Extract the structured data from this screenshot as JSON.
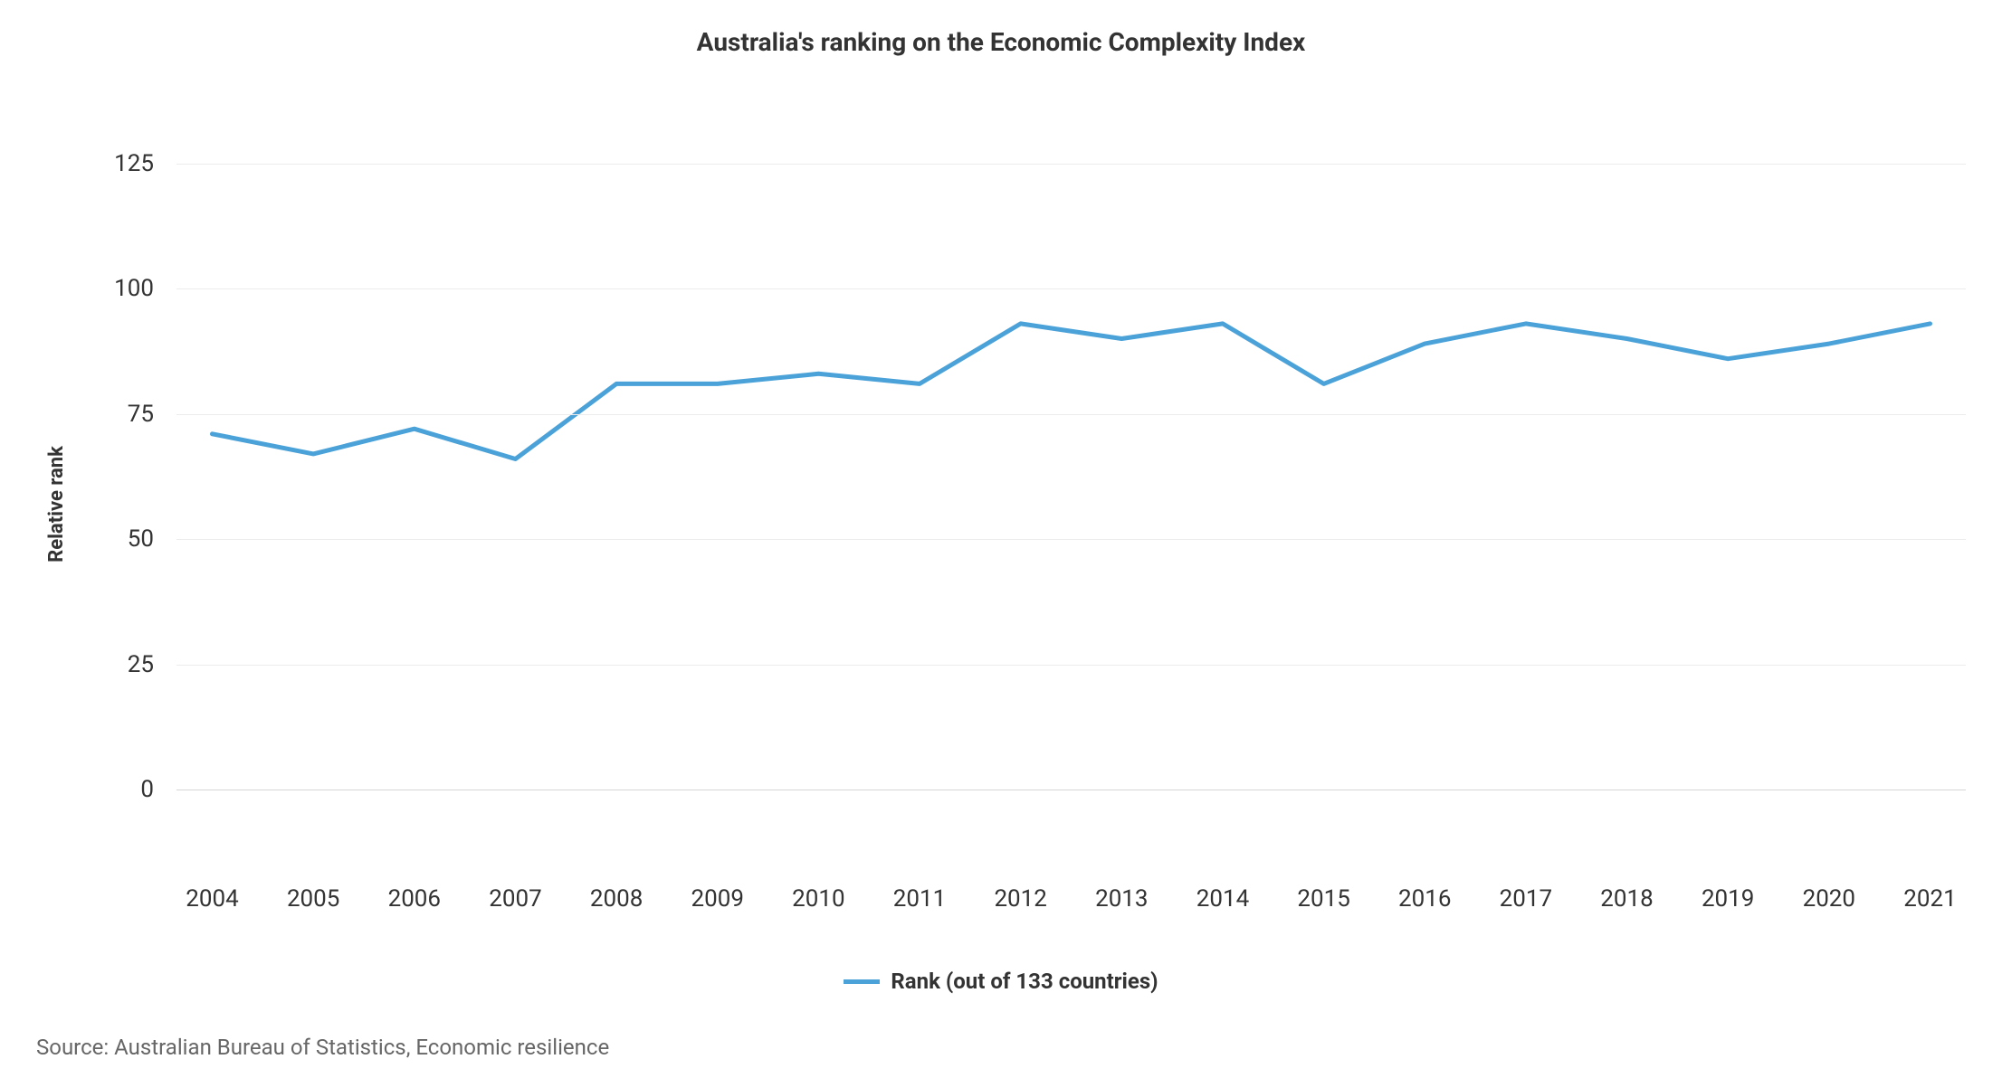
{
  "chart": {
    "type": "line",
    "title": "Australia's ranking on the Economic Complexity Index",
    "ylabel": "Relative rank",
    "title_fontsize": 28,
    "title_fontweight": 700,
    "ylabel_fontsize": 22,
    "ylabel_fontweight": 700,
    "x_values": [
      "2004",
      "2005",
      "2006",
      "2007",
      "2008",
      "2009",
      "2010",
      "2011",
      "2012",
      "2013",
      "2014",
      "2015",
      "2016",
      "2017",
      "2018",
      "2019",
      "2020",
      "2021"
    ],
    "y_values": [
      71,
      67,
      72,
      66,
      81,
      81,
      83,
      81,
      93,
      90,
      93,
      81,
      89,
      93,
      90,
      86,
      89,
      93
    ],
    "ylim": [
      0,
      130
    ],
    "y_ticks": [
      0,
      25,
      50,
      75,
      100,
      125
    ],
    "x_tick_fontsize": 26,
    "y_tick_fontsize": 26,
    "line_color": "#4aa2d9",
    "line_width": 5,
    "background_color": "#ffffff",
    "grid_color": "#ececec",
    "baseline_color": "#d6d6d6",
    "text_color": "#333333",
    "legend_label": "Rank (out of 133 countries)",
    "legend_fontsize": 24,
    "legend_fontweight": 700,
    "source_text": "Source: Australian Bureau of Statistics, Economic resilience",
    "source_fontsize": 24,
    "source_color": "#666666",
    "x_padding_pct": 2.0
  }
}
